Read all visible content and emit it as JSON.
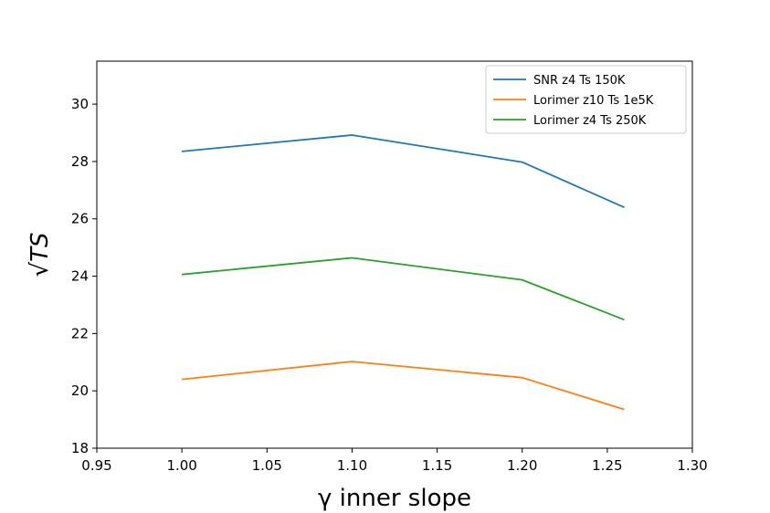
{
  "chart_data": {
    "type": "line",
    "xlabel": "γ inner slope",
    "ylabel": "√TS",
    "xlim": [
      0.95,
      1.3
    ],
    "ylim": [
      18,
      31.5
    ],
    "x_ticks": [
      "0.95",
      "1.00",
      "1.05",
      "1.10",
      "1.15",
      "1.20",
      "1.25",
      "1.30"
    ],
    "y_ticks": [
      "18",
      "20",
      "22",
      "24",
      "26",
      "28",
      "30"
    ],
    "x": [
      1.0,
      1.1,
      1.2,
      1.26
    ],
    "series": [
      {
        "name": "SNR z4 Ts 150K",
        "color": "#1f77b4",
        "values": [
          28.35,
          28.92,
          27.98,
          26.4
        ]
      },
      {
        "name": "Lorimer z10 Ts 1e5K",
        "color": "#ff7f0e",
        "values": [
          20.4,
          21.02,
          20.46,
          19.35
        ]
      },
      {
        "name": "Lorimer z4 Ts 250K",
        "color": "#2ca02c",
        "values": [
          24.06,
          24.64,
          23.87,
          22.48
        ]
      }
    ],
    "legend_position": "top-right",
    "grid": false
  }
}
